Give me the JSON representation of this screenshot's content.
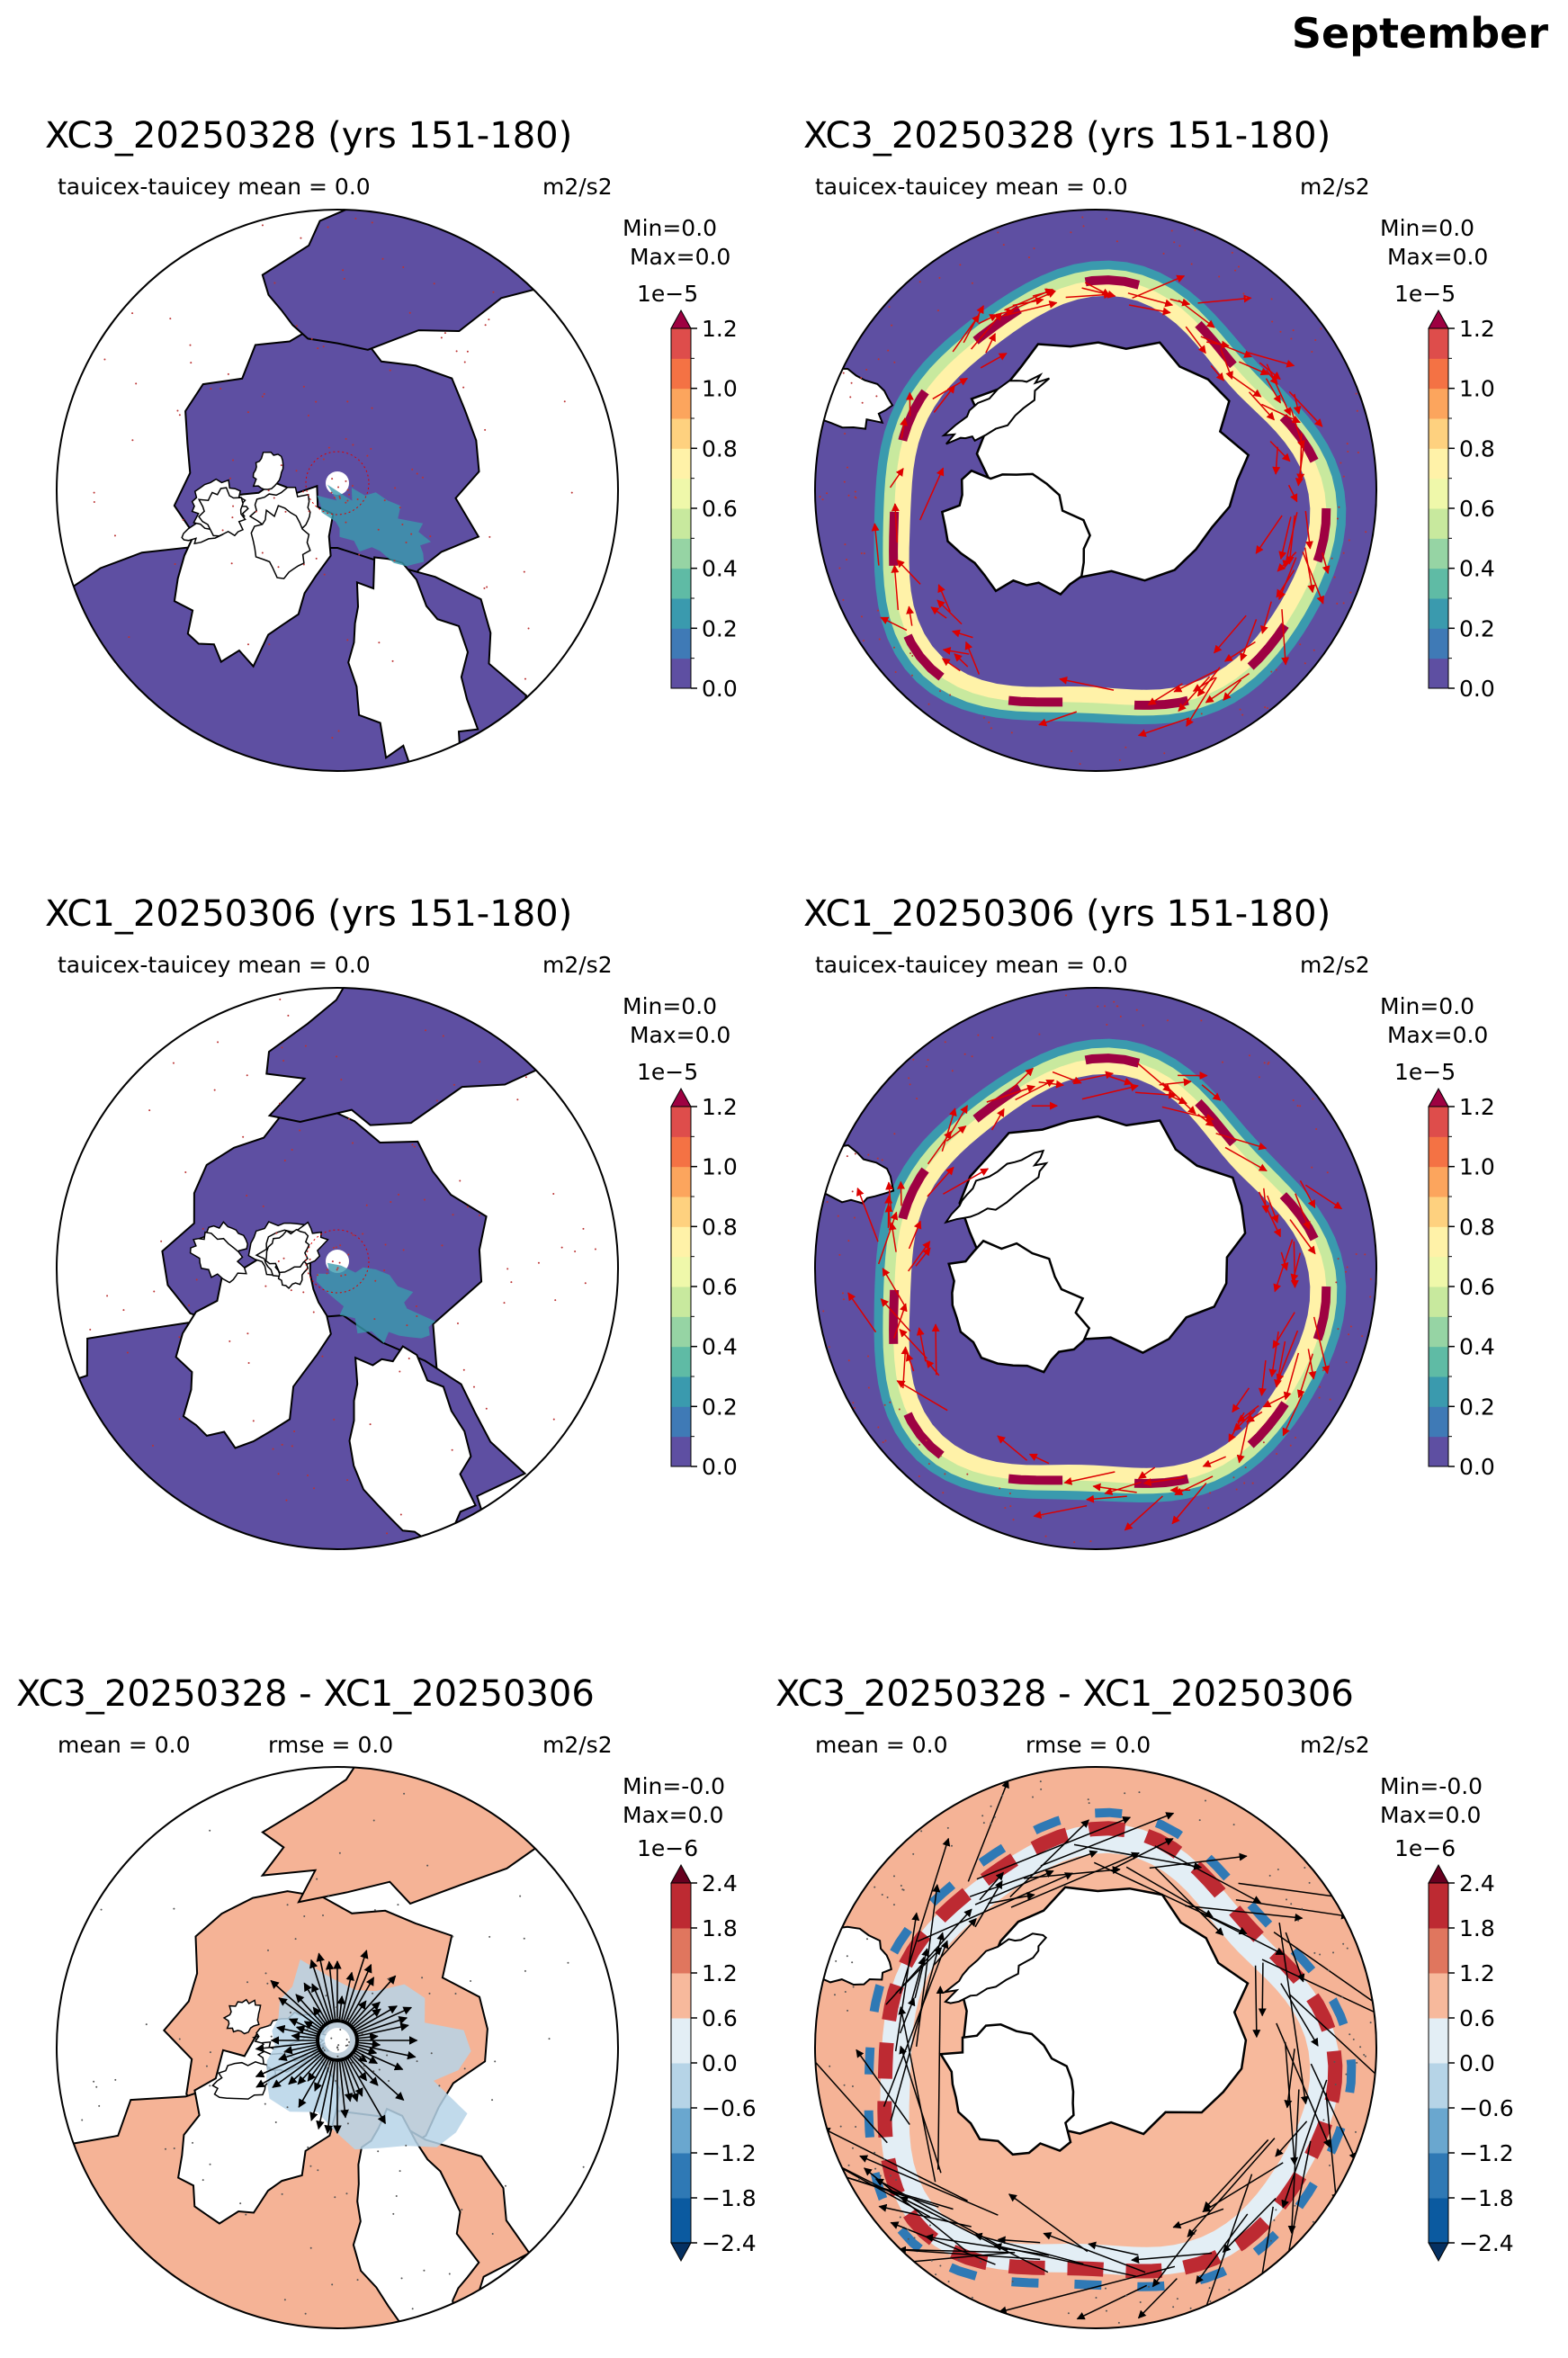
{
  "figure": {
    "title": "September"
  },
  "panels": [
    {
      "id": "p1",
      "title": "XC3_20250328 (yrs 151-180)",
      "sub_left": "tauicex-tauicey  mean = 0.0",
      "sub_mid": "",
      "units": "m2/s2",
      "stat_min": "Min=0.0",
      "stat_max": " Max=0.0",
      "hemisphere": "north",
      "kind": "model"
    },
    {
      "id": "p2",
      "title": "XC3_20250328 (yrs 151-180)",
      "sub_left": "tauicex-tauicey  mean = 0.0",
      "sub_mid": "",
      "units": "m2/s2",
      "stat_min": "Min=0.0",
      "stat_max": " Max=0.0",
      "hemisphere": "south",
      "kind": "model"
    },
    {
      "id": "p3",
      "title": "XC1_20250306 (yrs 151-180)",
      "sub_left": "tauicex-tauicey  mean = 0.0",
      "sub_mid": "",
      "units": "m2/s2",
      "stat_min": "Min=0.0",
      "stat_max": " Max=0.0",
      "hemisphere": "north",
      "kind": "model"
    },
    {
      "id": "p4",
      "title": "XC1_20250306 (yrs 151-180)",
      "sub_left": "tauicex-tauicey  mean = 0.0",
      "sub_mid": "",
      "units": "m2/s2",
      "stat_min": "Min=0.0",
      "stat_max": " Max=0.0",
      "hemisphere": "south",
      "kind": "model"
    },
    {
      "id": "p5",
      "title": "XC3_20250328 - XC1_20250306",
      "sub_left": "mean = 0.0",
      "sub_mid": "rmse = 0.0",
      "units": "m2/s2",
      "stat_min": "Min=-0.0",
      "stat_max": "Max=0.0",
      "hemisphere": "north",
      "kind": "diff"
    },
    {
      "id": "p6",
      "title": "XC3_20250328 - XC1_20250306",
      "sub_left": "mean = 0.0",
      "sub_mid": "rmse = 0.0",
      "units": "m2/s2",
      "stat_min": "Min=-0.0",
      "stat_max": "Max=0.0",
      "hemisphere": "south",
      "kind": "diff"
    }
  ],
  "colorbars": {
    "model": {
      "exponent": "1e−5",
      "tick_labels": [
        "0.0",
        "0.2",
        "0.4",
        "0.6",
        "0.8",
        "1.0",
        "1.2"
      ],
      "range": [
        0.0,
        1.2
      ],
      "levels": 12,
      "extend": "max",
      "colors": [
        "#5e4fa2",
        "#3f7ab6",
        "#3a9aae",
        "#5fbba5",
        "#96d4a4",
        "#c8e99e",
        "#eff8aa",
        "#fff2a8",
        "#fed17f",
        "#fca55d",
        "#f47244",
        "#de4d4b",
        "#9e0142"
      ]
    },
    "diff": {
      "exponent": "1e−6",
      "tick_labels": [
        "2.4",
        "1.8",
        "1.2",
        "0.6",
        "0.0",
        "−0.6",
        "−1.2",
        "−1.8",
        "−2.4"
      ],
      "range": [
        -2.4,
        2.4
      ],
      "levels": 8,
      "extend": "both",
      "colors": [
        "#0b5aa0",
        "#2f79b5",
        "#6aa7cf",
        "#b6d4e7",
        "#e3eef5",
        "#f7b99c",
        "#e0765e",
        "#bd2a32",
        "#890b23",
        "#67001f",
        "#053061"
      ]
    }
  },
  "map_colors": {
    "land": "#ffffff",
    "model_ocean": "#5e4fa2",
    "diff_ocean": "#f5b396",
    "model_vectors": "#dd0000",
    "diff_vectors": "#000000",
    "outline": "#000000"
  },
  "chart_data": [
    {
      "type": "heatmap",
      "title": "XC3_20250328 (yrs 151-180)",
      "subtitle": "tauicex-tauicey  mean = 0.0",
      "units": "m2/s2",
      "hemisphere": "Arctic",
      "vmin": 0.0,
      "vmax": 1.2,
      "scale": "1e-5",
      "min": 0.0,
      "max": 0.0
    },
    {
      "type": "heatmap",
      "title": "XC3_20250328 (yrs 151-180)",
      "subtitle": "tauicex-tauicey  mean = 0.0",
      "units": "m2/s2",
      "hemisphere": "Antarctic",
      "vmin": 0.0,
      "vmax": 1.2,
      "scale": "1e-5",
      "min": 0.0,
      "max": 0.0
    },
    {
      "type": "heatmap",
      "title": "XC1_20250306 (yrs 151-180)",
      "subtitle": "tauicex-tauicey  mean = 0.0",
      "units": "m2/s2",
      "hemisphere": "Arctic",
      "vmin": 0.0,
      "vmax": 1.2,
      "scale": "1e-5",
      "min": 0.0,
      "max": 0.0
    },
    {
      "type": "heatmap",
      "title": "XC1_20250306 (yrs 151-180)",
      "subtitle": "tauicex-tauicey  mean = 0.0",
      "units": "m2/s2",
      "hemisphere": "Antarctic",
      "vmin": 0.0,
      "vmax": 1.2,
      "scale": "1e-5",
      "min": 0.0,
      "max": 0.0
    },
    {
      "type": "heatmap",
      "title": "XC3_20250328 - XC1_20250306",
      "subtitle": "mean = 0.0  rmse = 0.0",
      "units": "m2/s2",
      "hemisphere": "Arctic",
      "vmin": -2.4,
      "vmax": 2.4,
      "scale": "1e-6",
      "min": -0.0,
      "max": 0.0
    },
    {
      "type": "heatmap",
      "title": "XC3_20250328 - XC1_20250306",
      "subtitle": "mean = 0.0  rmse = 0.0",
      "units": "m2/s2",
      "hemisphere": "Antarctic",
      "vmin": -2.4,
      "vmax": 2.4,
      "scale": "1e-6",
      "min": -0.0,
      "max": 0.0
    }
  ]
}
